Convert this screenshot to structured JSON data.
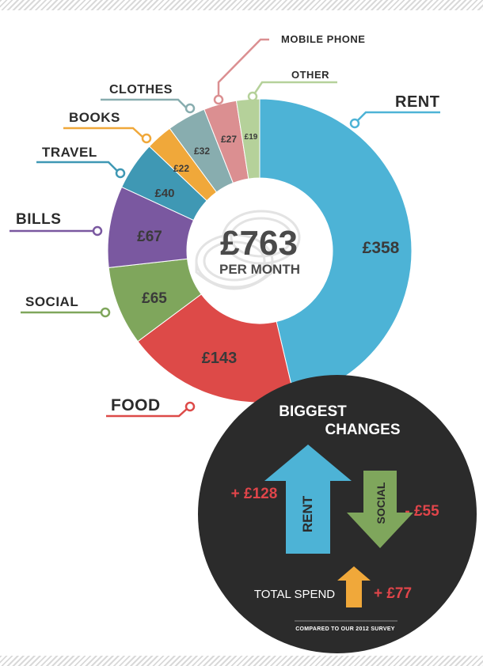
{
  "chart_data": {
    "type": "pie",
    "title": "",
    "center": {
      "amount": "£763",
      "unit": "PER MONTH"
    },
    "total": 763,
    "slices": [
      {
        "name": "RENT",
        "value": 358,
        "label": "£358",
        "color": "#4db3d6"
      },
      {
        "name": "FOOD",
        "value": 143,
        "label": "£143",
        "color": "#dd4a48"
      },
      {
        "name": "SOCIAL",
        "value": 65,
        "label": "£65",
        "color": "#7fa65c"
      },
      {
        "name": "BILLS",
        "value": 67,
        "label": "£67",
        "color": "#7a58a0"
      },
      {
        "name": "TRAVEL",
        "value": 40,
        "label": "£40",
        "color": "#3f98b4"
      },
      {
        "name": "BOOKS",
        "value": 22,
        "label": "£22",
        "color": "#f0a83a"
      },
      {
        "name": "CLOTHES",
        "value": 32,
        "label": "£32",
        "color": "#88adaf"
      },
      {
        "name": "MOBILE PHONE",
        "value": 27,
        "label": "£27",
        "color": "#db8f91"
      },
      {
        "name": "OTHER",
        "value": 19,
        "label": "£19",
        "color": "#b5d19a"
      }
    ]
  },
  "changes_panel": {
    "title_line1": "BIGGEST",
    "title_line2": "CHANGES",
    "up": {
      "name": "RENT",
      "delta": "+ £128",
      "color": "#4db3d6"
    },
    "down": {
      "name": "SOCIAL",
      "delta": "- £55",
      "color": "#7fa65c"
    },
    "total": {
      "label": "TOTAL SPEND",
      "delta": "+ £77",
      "color": "#f0a83a"
    },
    "footnote": "COMPARED TO OUR 2012 SURVEY",
    "background": "#2b2b2b"
  }
}
